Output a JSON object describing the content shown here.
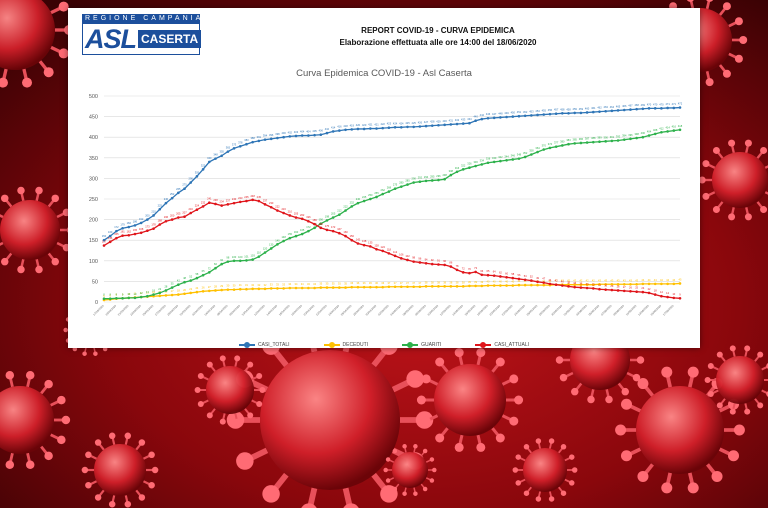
{
  "report": {
    "logo_region_text": "REGIONE CAMPANIA",
    "logo_asl": "ASL",
    "logo_city": "CASERTA",
    "title": "REPORT COVID-19 - CURVA EPIDEMICA",
    "subtitle": "Elaborazione effettuata alle ore 14:00 del 18/06/2020"
  },
  "colors": {
    "casi_totali": "#2e75b6",
    "deceduti": "#ffc000",
    "guariti": "#2db14b",
    "casi_attuali": "#e0151b",
    "grid": "#d9d9d9",
    "axis_text": "#595959"
  },
  "chart_data": {
    "type": "line",
    "title": "Curva Epidemica COVID-19 - Asl Caserta",
    "xlabel": "",
    "ylabel": "",
    "ylim": [
      0,
      500
    ],
    "yticks": [
      0,
      50,
      100,
      150,
      200,
      250,
      300,
      350,
      400,
      450,
      500
    ],
    "grid": true,
    "legend_position": "bottom",
    "x": [
      "17/03/2020",
      "18/03/2020",
      "19/03/2020",
      "20/03/2020",
      "21/03/2020",
      "22/03/2020",
      "23/03/2020",
      "24/03/2020",
      "25/03/2020",
      "26/03/2020",
      "27/03/2020",
      "28/03/2020",
      "29/03/2020",
      "30/03/2020",
      "31/03/2020",
      "01/04/2020",
      "02/04/2020",
      "03/04/2020",
      "04/04/2020",
      "05/04/2020",
      "06/04/2020",
      "07/04/2020",
      "08/04/2020",
      "09/04/2020",
      "10/04/2020",
      "11/04/2020",
      "12/04/2020",
      "13/04/2020",
      "14/04/2020",
      "15/04/2020",
      "16/04/2020",
      "17/04/2020",
      "18/04/2020",
      "19/04/2020",
      "20/04/2020",
      "21/04/2020",
      "22/04/2020",
      "23/04/2020",
      "24/04/2020",
      "25/04/2020",
      "26/04/2020",
      "27/04/2020",
      "28/04/2020",
      "29/04/2020",
      "30/04/2020",
      "01/05/2020",
      "02/05/2020",
      "03/05/2020",
      "04/05/2020",
      "05/05/2020",
      "06/05/2020",
      "07/05/2020",
      "08/05/2020",
      "09/05/2020",
      "10/05/2020",
      "11/05/2020",
      "12/05/2020",
      "13/05/2020",
      "14/05/2020",
      "15/05/2020",
      "16/05/2020",
      "17/05/2020",
      "18/05/2020",
      "19/05/2020",
      "20/05/2020",
      "21/05/2020",
      "22/05/2020",
      "23/05/2020",
      "24/05/2020",
      "25/05/2020",
      "26/05/2020",
      "27/05/2020",
      "28/05/2020",
      "29/05/2020",
      "30/05/2020",
      "31/05/2020",
      "01/06/2020",
      "02/06/2020",
      "03/06/2020",
      "04/06/2020",
      "05/06/2020",
      "06/06/2020",
      "07/06/2020",
      "08/06/2020",
      "09/06/2020",
      "10/06/2020",
      "11/06/2020",
      "12/06/2020",
      "13/06/2020",
      "14/06/2020",
      "15/06/2020",
      "16/06/2020",
      "17/06/2020",
      "18/06/2020"
    ],
    "series": [
      {
        "name": "CASI_TOTALI",
        "color": "#2e75b6",
        "values": [
          150,
          160,
          172,
          179,
          182,
          186,
          192,
          200,
          210,
          225,
          240,
          252,
          265,
          275,
          290,
          305,
          322,
          340,
          348,
          355,
          365,
          373,
          378,
          383,
          388,
          391,
          394,
          396,
          398,
          400,
          402,
          403,
          404,
          404,
          405,
          406,
          410,
          414,
          416,
          418,
          419,
          420,
          420,
          421,
          421,
          422,
          423,
          424,
          424,
          425,
          425,
          426,
          427,
          428,
          429,
          430,
          431,
          432,
          433,
          434,
          440,
          444,
          446,
          447,
          448,
          449,
          450,
          451,
          452,
          453,
          454,
          455,
          456,
          457,
          458,
          458,
          459,
          459,
          460,
          461,
          462,
          463,
          464,
          465,
          466,
          467,
          468,
          469,
          470,
          470,
          470,
          471,
          471,
          472
        ]
      },
      {
        "name": "DECEDUTI",
        "color": "#ffc000",
        "values": [
          5,
          6,
          8,
          9,
          10,
          11,
          12,
          13,
          14,
          15,
          16,
          17,
          18,
          20,
          22,
          24,
          26,
          27,
          28,
          29,
          30,
          30,
          31,
          31,
          32,
          32,
          32,
          33,
          33,
          33,
          34,
          34,
          34,
          34,
          34,
          35,
          35,
          35,
          35,
          35,
          36,
          36,
          36,
          36,
          36,
          36,
          37,
          37,
          37,
          37,
          37,
          37,
          38,
          38,
          38,
          38,
          38,
          38,
          38,
          39,
          39,
          39,
          40,
          40,
          40,
          40,
          40,
          41,
          41,
          41,
          41,
          41,
          41,
          42,
          42,
          42,
          42,
          42,
          42,
          42,
          43,
          43,
          43,
          43,
          43,
          43,
          43,
          44,
          44,
          44,
          44,
          44,
          44,
          45
        ]
      },
      {
        "name": "GUARITI",
        "color": "#2db14b",
        "values": [
          8,
          8,
          9,
          9,
          10,
          10,
          12,
          14,
          18,
          22,
          28,
          35,
          42,
          48,
          52,
          58,
          65,
          72,
          82,
          92,
          98,
          100,
          100,
          101,
          103,
          110,
          120,
          130,
          140,
          148,
          155,
          160,
          165,
          172,
          180,
          190,
          198,
          205,
          212,
          222,
          232,
          240,
          245,
          250,
          255,
          262,
          268,
          275,
          280,
          285,
          290,
          292,
          294,
          295,
          296,
          298,
          308,
          316,
          322,
          326,
          330,
          334,
          338,
          340,
          342,
          344,
          346,
          348,
          352,
          358,
          364,
          370,
          374,
          377,
          380,
          383,
          385,
          386,
          387,
          388,
          389,
          390,
          391,
          392,
          394,
          396,
          398,
          400,
          404,
          408,
          412,
          414,
          416,
          418
        ]
      },
      {
        "name": "CASI_ATTUALI",
        "color": "#e0151b",
        "values": [
          137,
          146,
          155,
          161,
          162,
          165,
          168,
          173,
          178,
          188,
          196,
          200,
          205,
          207,
          216,
          224,
          232,
          241,
          238,
          234,
          237,
          240,
          243,
          245,
          248,
          245,
          237,
          230,
          222,
          216,
          210,
          205,
          202,
          196,
          189,
          180,
          175,
          172,
          167,
          160,
          150,
          142,
          138,
          135,
          128,
          124,
          118,
          112,
          106,
          102,
          98,
          96,
          94,
          92,
          91,
          90,
          86,
          78,
          72,
          70,
          73,
          66,
          65,
          64,
          62,
          60,
          58,
          56,
          54,
          52,
          49,
          47,
          44,
          42,
          40,
          38,
          36,
          35,
          34,
          33,
          31,
          30,
          29,
          28,
          27,
          26,
          25,
          24,
          22,
          18,
          14,
          12,
          10,
          9
        ]
      }
    ]
  }
}
